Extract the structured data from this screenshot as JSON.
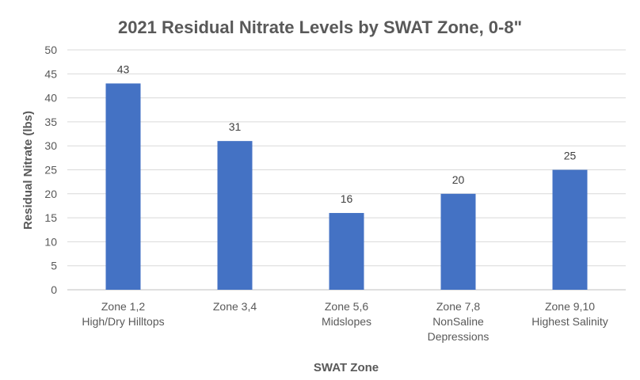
{
  "chart_data": {
    "type": "bar",
    "title": "2021 Residual Nitrate Levels by SWAT Zone, 0-8\"",
    "xlabel": "SWAT Zone",
    "ylabel": "Residual Nitrate (lbs)",
    "categories": [
      [
        "Zone 1,2",
        "High/Dry Hilltops"
      ],
      [
        "Zone 3,4"
      ],
      [
        "Zone 5,6",
        "Midslopes"
      ],
      [
        "Zone 7,8",
        "NonSaline",
        "Depressions"
      ],
      [
        "Zone 9,10",
        "Highest Salinity"
      ]
    ],
    "values": [
      43,
      31,
      16,
      20,
      25
    ],
    "data_labels": [
      "43",
      "31",
      "16",
      "20",
      "25"
    ],
    "ylim": [
      0,
      50
    ],
    "yticks": [
      "0",
      "5",
      "10",
      "15",
      "20",
      "25",
      "30",
      "35",
      "40",
      "45",
      "50"
    ],
    "grid": true,
    "legend": "none",
    "bar_color": "#4472c4",
    "grid_color": "#d9d9d9"
  }
}
